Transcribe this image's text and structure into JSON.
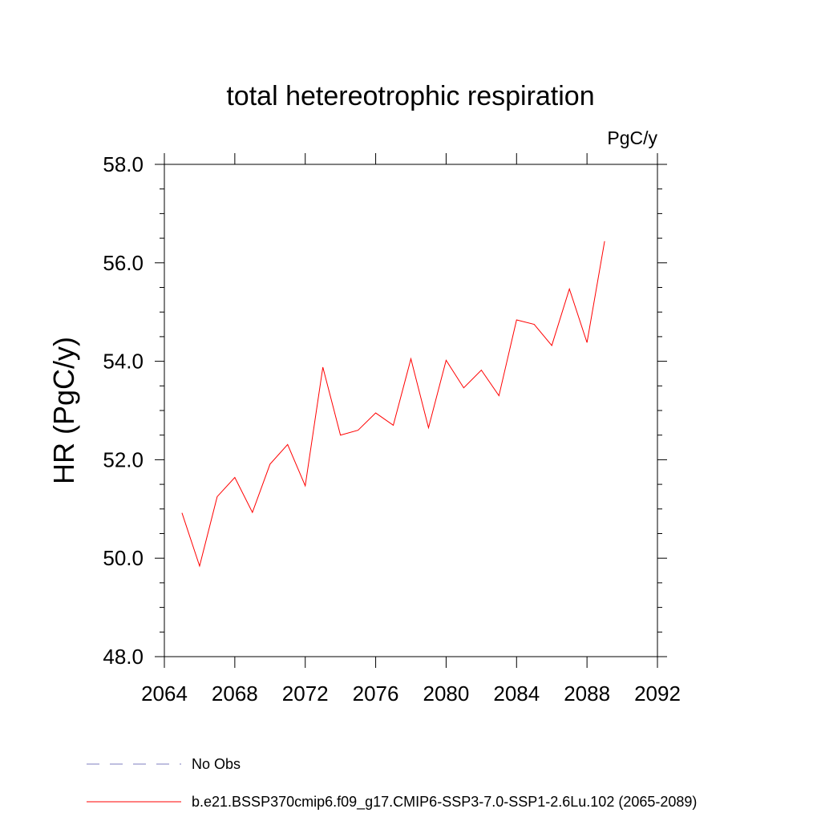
{
  "chart_data": {
    "type": "line",
    "title": "total hetereotrophic respiration",
    "units_label": "PgC/y",
    "xlabel": "",
    "ylabel": "HR  (PgC/y)",
    "xlim": [
      2064,
      2092
    ],
    "ylim": [
      48.0,
      58.0
    ],
    "x_ticks": [
      "2064",
      "2068",
      "2072",
      "2076",
      "2080",
      "2084",
      "2088",
      "2092"
    ],
    "y_ticks": [
      "48.0",
      "50.0",
      "52.0",
      "54.0",
      "56.0",
      "58.0"
    ],
    "grid": false,
    "series": [
      {
        "name": "b.e21.BSSP370cmip6.f09_g17.CMIP6-SSP3-7.0-SSP1-2.6Lu.102 (2065-2089)",
        "color": "#ff0000",
        "x": [
          2065,
          2066,
          2067,
          2068,
          2069,
          2070,
          2071,
          2072,
          2073,
          2074,
          2075,
          2076,
          2077,
          2078,
          2079,
          2080,
          2081,
          2082,
          2083,
          2084,
          2085,
          2086,
          2087,
          2088,
          2089
        ],
        "values": [
          50.92,
          49.84,
          51.25,
          51.64,
          50.93,
          51.91,
          52.31,
          51.47,
          53.88,
          52.5,
          52.6,
          52.95,
          52.7,
          54.05,
          52.65,
          54.02,
          53.46,
          53.82,
          53.3,
          54.84,
          54.75,
          54.32,
          55.47,
          54.38,
          56.44
        ]
      }
    ],
    "legend": {
      "placement": "bottom-left",
      "entries": [
        {
          "label": "No Obs",
          "color": "#7f7fbf",
          "style": "dashed"
        },
        {
          "label": "b.e21.BSSP370cmip6.f09_g17.CMIP6-SSP3-7.0-SSP1-2.6Lu.102 (2065-2089)",
          "color": "#ff0000",
          "style": "solid"
        }
      ]
    }
  }
}
